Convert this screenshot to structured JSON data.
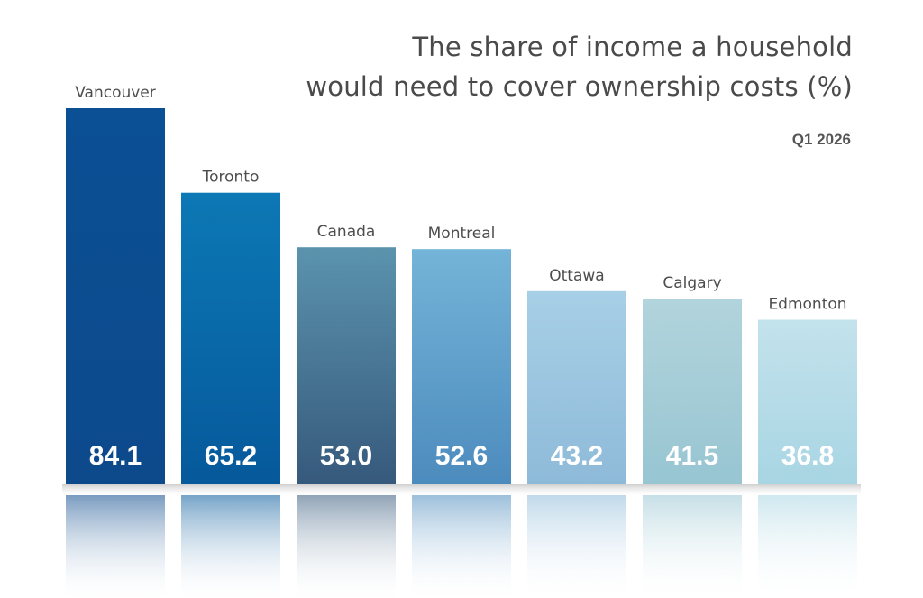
{
  "chart_data": {
    "type": "bar",
    "title_lines": [
      "The share of income a household",
      "would need to cover ownership costs (%)"
    ],
    "subtitle": "Q1 2026",
    "categories": [
      "Vancouver",
      "Toronto",
      "Canada",
      "Montreal",
      "Ottawa",
      "Calgary",
      "Edmonton"
    ],
    "values": [
      84.1,
      65.2,
      53.0,
      52.6,
      43.2,
      41.5,
      36.8
    ],
    "value_labels": [
      "84.1",
      "65.2",
      "53.0",
      "52.6",
      "43.2",
      "41.5",
      "36.8"
    ],
    "ylim": [
      0,
      100
    ],
    "grid": false,
    "legend": "none",
    "bar_colors_top": [
      "#0b4f94",
      "#0c78b5",
      "#5b93ad",
      "#74b4d8",
      "#a7cfe6",
      "#b2d4dc",
      "#c3e2ec"
    ],
    "bar_colors_bottom": [
      "#0c4a8c",
      "#06599b",
      "#36597c",
      "#4c8bbd",
      "#8ebad9",
      "#97c5d2",
      "#a8d5e3"
    ],
    "label_color": "#4d4d4d",
    "value_text_color": "#ffffff"
  }
}
